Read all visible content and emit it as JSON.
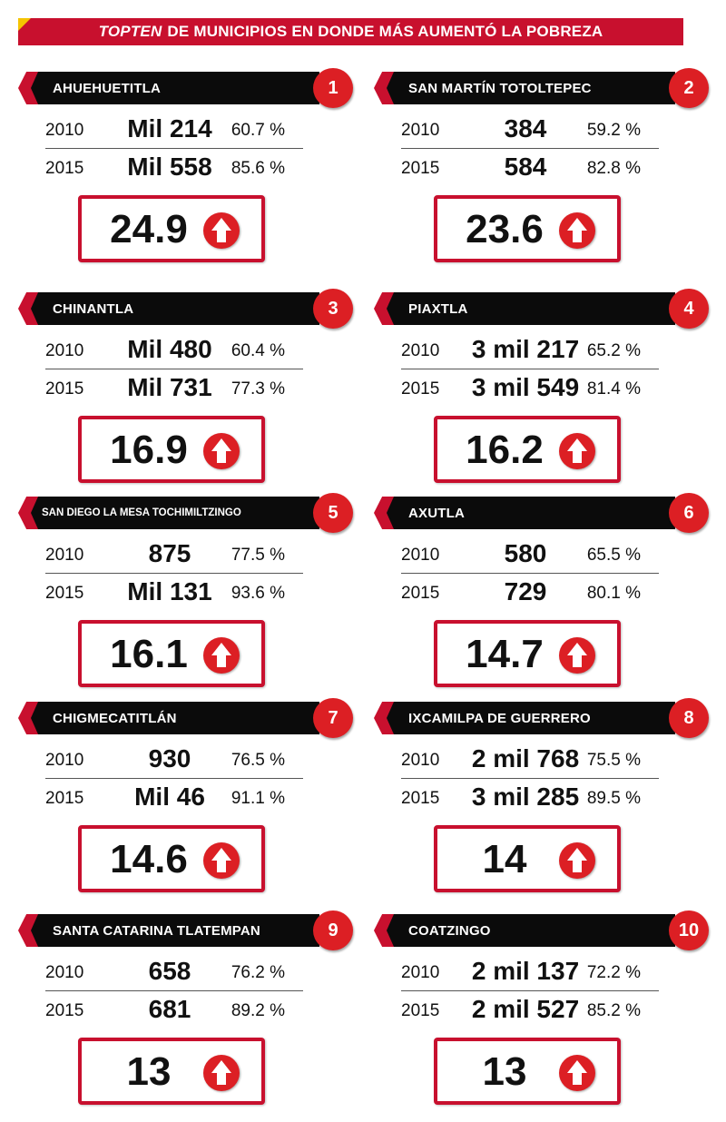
{
  "header": {
    "title_em": "TOPTEN",
    "title_rest": "DE MUNICIPIOS EN DONDE MÁS AUMENTÓ LA POBREZA"
  },
  "cards": [
    {
      "rank": "1",
      "name": "AHUEHUETITLA",
      "y2010": "2010",
      "v2010": "Mil 214",
      "p2010": "60.7 %",
      "y2015": "2015",
      "v2015": "Mil 558",
      "p2015": "85.6 %",
      "delta": "24.9",
      "icon": "arrow-up-icon"
    },
    {
      "rank": "2",
      "name": "SAN MARTÍN TOTOLTEPEC",
      "y2010": "2010",
      "v2010": "384",
      "p2010": "59.2 %",
      "y2015": "2015",
      "v2015": "584",
      "p2015": "82.8 %",
      "delta": "23.6",
      "icon": "arrow-up-icon"
    },
    {
      "rank": "3",
      "name": "CHINANTLA",
      "y2010": "2010",
      "v2010": "Mil 480",
      "p2010": "60.4 %",
      "y2015": "2015",
      "v2015": "Mil 731",
      "p2015": "77.3 %",
      "delta": "16.9",
      "icon": "arrow-up-icon"
    },
    {
      "rank": "4",
      "name": "PIAXTLA",
      "y2010": "2010",
      "v2010": "3 mil 217",
      "p2010": "65.2 %",
      "y2015": "2015",
      "v2015": "3 mil 549",
      "p2015": "81.4 %",
      "delta": "16.2",
      "icon": "arrow-up-icon"
    },
    {
      "rank": "5",
      "name": "SAN DIEGO LA MESA TOCHIMILTZINGO",
      "y2010": "2010",
      "v2010": "875",
      "p2010": "77.5 %",
      "y2015": "2015",
      "v2015": "Mil 131",
      "p2015": "93.6 %",
      "delta": "16.1",
      "icon": "arrow-up-icon"
    },
    {
      "rank": "6",
      "name": "AXUTLA",
      "y2010": "2010",
      "v2010": "580",
      "p2010": "65.5 %",
      "y2015": "2015",
      "v2015": "729",
      "p2015": "80.1 %",
      "delta": "14.7",
      "icon": "arrow-up-icon"
    },
    {
      "rank": "7",
      "name": "CHIGMECATITLÁN",
      "y2010": "2010",
      "v2010": "930",
      "p2010": "76.5 %",
      "y2015": "2015",
      "v2015": "Mil 46",
      "p2015": "91.1 %",
      "delta": "14.6",
      "icon": "arrow-up-icon"
    },
    {
      "rank": "8",
      "name": "IXCAMILPA DE GUERRERO",
      "y2010": "2010",
      "v2010": "2 mil 768",
      "p2010": "75.5 %",
      "y2015": "2015",
      "v2015": "3 mil 285",
      "p2015": "89.5 %",
      "delta": "14",
      "icon": "arrow-up-icon"
    },
    {
      "rank": "9",
      "name": "SANTA CATARINA TLATEMPAN",
      "y2010": "2010",
      "v2010": "658",
      "p2010": "76.2 %",
      "y2015": "2015",
      "v2015": "681",
      "p2015": "89.2 %",
      "delta": "13",
      "icon": "arrow-up-icon"
    },
    {
      "rank": "10",
      "name": "COATZINGO",
      "y2010": "2010",
      "v2010": "2 mil 137",
      "p2010": "72.2 %",
      "y2015": "2015",
      "v2015": "2 mil 527",
      "p2015": "85.2 %",
      "delta": "13",
      "icon": "arrow-up-icon"
    }
  ],
  "colors": {
    "accent": "#c8102e",
    "badge": "#dc1f24",
    "name_bar": "#0b0b0b",
    "corner": "#f5c400"
  }
}
